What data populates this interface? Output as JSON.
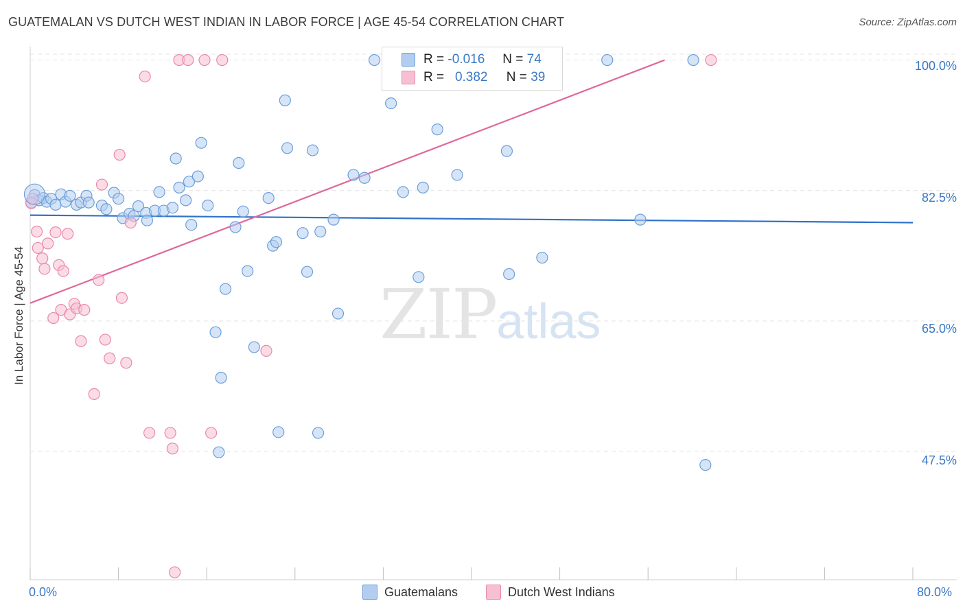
{
  "header": {
    "title": "GUATEMALAN VS DUTCH WEST INDIAN IN LABOR FORCE | AGE 45-54 CORRELATION CHART",
    "source": "Source: ZipAtlas.com"
  },
  "stats": {
    "blue": {
      "r_label": "R =",
      "r_value": "-0.016",
      "n_label": "N =",
      "n_value": "74"
    },
    "pink": {
      "r_label": "R =",
      "r_value": "0.382",
      "n_label": "N =",
      "n_value": "39"
    }
  },
  "legend": {
    "blue": "Guatemalans",
    "pink": "Dutch West Indians"
  },
  "axis": {
    "y_title": "In Labor Force | Age 45-54",
    "y_ticks": [
      "100.0%",
      "82.5%",
      "65.0%",
      "47.5%"
    ],
    "x_min_label": "0.0%",
    "x_max_label": "80.0%"
  },
  "watermark": {
    "zip": "ZIP",
    "atlas": "atlas"
  },
  "colors": {
    "blue": "#6d9ed9",
    "blue_fill": "#b3cdf1",
    "blue_line": "#2f72c9",
    "pink": "#e889aa",
    "pink_fill": "#f7c0d2",
    "pink_line": "#e0679a",
    "grid": "#e3e3e3"
  },
  "chart_data": {
    "type": "scatter",
    "title": "GUATEMALAN VS DUTCH WEST INDIAN IN LABOR FORCE | AGE 45-54 CORRELATION CHART",
    "xlabel": "",
    "ylabel": "In Labor Force | Age 45-54",
    "xlim": [
      0,
      80
    ],
    "ylim": [
      30.3,
      101.8
    ],
    "y_gridlines": [
      100.0,
      82.5,
      65.0,
      47.5
    ],
    "legend_position": "bottom-center",
    "series": [
      {
        "name": "Guatemalans",
        "color": "blue",
        "r": -0.016,
        "n": 74,
        "trend": {
          "x": [
            0,
            80
          ],
          "y": [
            79.2,
            78.2
          ]
        },
        "points": [
          [
            0.4,
            81.9
          ],
          [
            0.8,
            81.2
          ],
          [
            1.2,
            81.5
          ],
          [
            1.5,
            81.0
          ],
          [
            1.9,
            81.4
          ],
          [
            2.3,
            80.6
          ],
          [
            2.8,
            82.0
          ],
          [
            3.2,
            81.0
          ],
          [
            3.6,
            81.8
          ],
          [
            4.2,
            80.6
          ],
          [
            4.6,
            80.9
          ],
          [
            5.1,
            81.8
          ],
          [
            6.5,
            80.5
          ],
          [
            6.9,
            80.0
          ],
          [
            7.6,
            82.2
          ],
          [
            8.0,
            81.4
          ],
          [
            8.4,
            78.8
          ],
          [
            9.0,
            79.4
          ],
          [
            9.4,
            79.1
          ],
          [
            9.8,
            80.4
          ],
          [
            10.5,
            79.5
          ],
          [
            10.6,
            78.5
          ],
          [
            11.3,
            79.8
          ],
          [
            11.7,
            82.3
          ],
          [
            12.1,
            79.8
          ],
          [
            12.9,
            80.2
          ],
          [
            13.2,
            86.8
          ],
          [
            13.5,
            82.9
          ],
          [
            14.1,
            81.2
          ],
          [
            14.4,
            83.7
          ],
          [
            14.6,
            77.9
          ],
          [
            15.2,
            84.4
          ],
          [
            15.5,
            88.9
          ],
          [
            16.1,
            80.5
          ],
          [
            16.8,
            63.5
          ],
          [
            17.1,
            47.4
          ],
          [
            17.3,
            57.4
          ],
          [
            17.7,
            69.3
          ],
          [
            18.6,
            77.6
          ],
          [
            18.9,
            86.2
          ],
          [
            19.3,
            79.7
          ],
          [
            19.7,
            71.7
          ],
          [
            20.3,
            61.5
          ],
          [
            21.6,
            81.5
          ],
          [
            22.0,
            75.1
          ],
          [
            22.3,
            75.6
          ],
          [
            22.5,
            50.1
          ],
          [
            23.1,
            94.6
          ],
          [
            23.3,
            88.2
          ],
          [
            24.7,
            76.8
          ],
          [
            25.1,
            71.6
          ],
          [
            25.6,
            87.9
          ],
          [
            26.1,
            50.0
          ],
          [
            26.3,
            77.0
          ],
          [
            27.5,
            78.6
          ],
          [
            27.9,
            66.0
          ],
          [
            29.3,
            84.6
          ],
          [
            30.3,
            84.2
          ],
          [
            31.2,
            100.0
          ],
          [
            32.7,
            94.2
          ],
          [
            33.8,
            82.3
          ],
          [
            35.2,
            70.9
          ],
          [
            35.6,
            82.9
          ],
          [
            36.9,
            90.7
          ],
          [
            38.7,
            84.6
          ],
          [
            43.2,
            87.8
          ],
          [
            43.4,
            71.3
          ],
          [
            46.4,
            73.5
          ],
          [
            52.3,
            100.0
          ],
          [
            55.3,
            78.6
          ],
          [
            60.1,
            100.0
          ],
          [
            61.2,
            45.7
          ],
          [
            0.1,
            80.9
          ],
          [
            5.3,
            80.9
          ]
        ]
      },
      {
        "name": "Dutch West Indians",
        "color": "pink",
        "r": 0.382,
        "n": 39,
        "trend": {
          "x": [
            0,
            57.5
          ],
          "y": [
            67.4,
            100.0
          ]
        },
        "points": [
          [
            0.1,
            80.8
          ],
          [
            0.2,
            81.4
          ],
          [
            0.6,
            77.0
          ],
          [
            0.7,
            74.8
          ],
          [
            1.1,
            73.4
          ],
          [
            1.3,
            72.0
          ],
          [
            1.6,
            75.4
          ],
          [
            2.1,
            65.4
          ],
          [
            2.3,
            76.9
          ],
          [
            2.6,
            72.5
          ],
          [
            2.8,
            66.5
          ],
          [
            3.0,
            71.7
          ],
          [
            3.4,
            76.7
          ],
          [
            3.6,
            65.9
          ],
          [
            4.0,
            67.3
          ],
          [
            4.2,
            66.7
          ],
          [
            4.6,
            62.3
          ],
          [
            4.9,
            66.5
          ],
          [
            5.8,
            55.2
          ],
          [
            6.2,
            70.5
          ],
          [
            6.5,
            83.3
          ],
          [
            6.8,
            62.5
          ],
          [
            7.2,
            60.0
          ],
          [
            8.1,
            87.3
          ],
          [
            8.3,
            68.1
          ],
          [
            8.7,
            59.4
          ],
          [
            9.1,
            78.2
          ],
          [
            10.4,
            97.8
          ],
          [
            10.8,
            50.0
          ],
          [
            12.7,
            50.0
          ],
          [
            12.9,
            47.9
          ],
          [
            13.1,
            31.3
          ],
          [
            13.5,
            100.0
          ],
          [
            14.3,
            100.0
          ],
          [
            15.8,
            100.0
          ],
          [
            16.4,
            50.0
          ],
          [
            17.4,
            100.0
          ],
          [
            21.4,
            61.0
          ],
          [
            61.7,
            100.0
          ]
        ]
      }
    ]
  }
}
